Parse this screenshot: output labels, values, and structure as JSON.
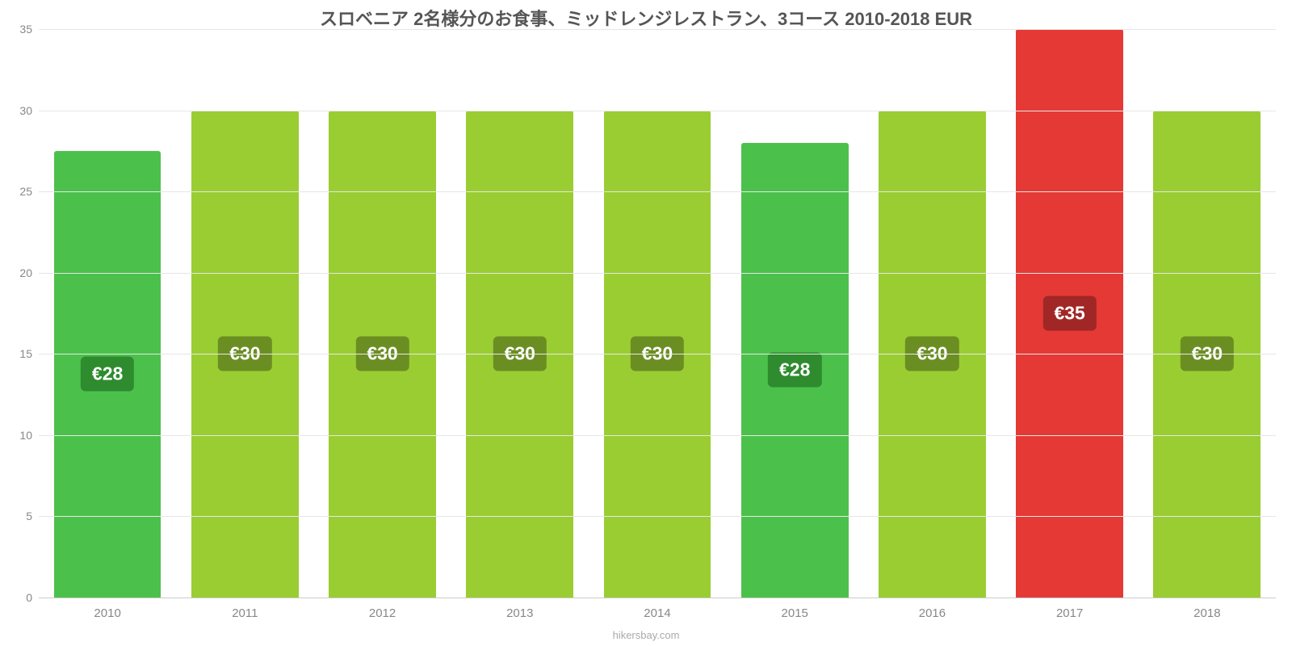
{
  "chart": {
    "type": "bar",
    "title": "スロベニア 2名様分のお食事、ミッドレンジレストラン、3コース 2010-2018 EUR",
    "title_fontsize": 22,
    "title_color": "#555555",
    "background_color": "#ffffff",
    "grid_color": "#e6e6e6",
    "baseline_color": "#cccccc",
    "attribution": "hikersbay.com",
    "attribution_color": "#aaaaaa",
    "ylim": [
      0,
      35
    ],
    "yticks": [
      0,
      5,
      10,
      15,
      20,
      25,
      30,
      35
    ],
    "ytick_fontsize": 14,
    "ytick_color": "#888888",
    "xlabel_fontsize": 15,
    "xlabel_color": "#888888",
    "bar_width_pct": 78,
    "value_badge_fontsize": 23,
    "value_badge_text_color": "#ffffff",
    "categories": [
      "2010",
      "2011",
      "2012",
      "2013",
      "2014",
      "2015",
      "2016",
      "2017",
      "2018"
    ],
    "values": [
      27.5,
      30,
      30,
      30,
      30,
      28,
      30,
      35,
      30
    ],
    "value_labels": [
      "€28",
      "€30",
      "€30",
      "€30",
      "€30",
      "€28",
      "€30",
      "€35",
      "€30"
    ],
    "bar_colors": [
      "#4bc14b",
      "#9acd32",
      "#9acd32",
      "#9acd32",
      "#9acd32",
      "#4bc14b",
      "#9acd32",
      "#e53935",
      "#9acd32"
    ],
    "badge_colors": [
      "#2e8b2e",
      "#6b8e23",
      "#6b8e23",
      "#6b8e23",
      "#6b8e23",
      "#2e8b2e",
      "#6b8e23",
      "#a02725",
      "#6b8e23"
    ]
  }
}
